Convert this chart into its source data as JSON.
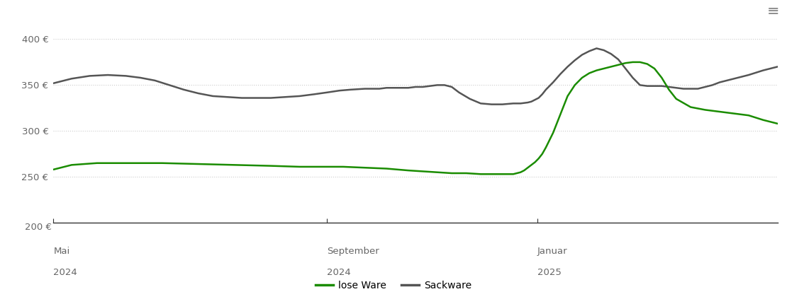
{
  "background_color": "#ffffff",
  "grid_color": "#cccccc",
  "lose_ware_color": "#1a8c00",
  "sackware_color": "#555555",
  "ylim": [
    200,
    415
  ],
  "yticks": [
    250,
    300,
    350,
    400
  ],
  "ytick_labels": [
    "250 €",
    "300 €",
    "350 €",
    "400 €"
  ],
  "y200_label": "200 €",
  "xtick_positions": [
    0.0,
    0.378,
    0.668
  ],
  "xtick_labels": [
    "Mai\n2024",
    "September\n2024",
    "Januar\n2025"
  ],
  "legend_labels": [
    "lose Ware",
    "Sackware"
  ],
  "lose_ware_x": [
    0.0,
    0.01,
    0.025,
    0.06,
    0.1,
    0.15,
    0.2,
    0.25,
    0.3,
    0.34,
    0.37,
    0.4,
    0.43,
    0.46,
    0.49,
    0.51,
    0.53,
    0.55,
    0.57,
    0.59,
    0.61,
    0.625,
    0.635,
    0.64,
    0.645,
    0.65,
    0.655,
    0.66,
    0.665,
    0.67,
    0.675,
    0.68,
    0.685,
    0.69,
    0.695,
    0.7,
    0.705,
    0.71,
    0.72,
    0.73,
    0.74,
    0.75,
    0.76,
    0.77,
    0.78,
    0.79,
    0.8,
    0.81,
    0.82,
    0.83,
    0.84,
    0.85,
    0.86,
    0.88,
    0.9,
    0.92,
    0.94,
    0.96,
    0.98,
    1.0
  ],
  "lose_ware_y": [
    258,
    260,
    263,
    265,
    265,
    265,
    264,
    263,
    262,
    261,
    261,
    261,
    260,
    259,
    257,
    256,
    255,
    254,
    254,
    253,
    253,
    253,
    253,
    254,
    255,
    257,
    260,
    263,
    266,
    270,
    275,
    282,
    290,
    298,
    308,
    318,
    328,
    338,
    350,
    358,
    363,
    366,
    368,
    370,
    372,
    374,
    375,
    375,
    373,
    368,
    358,
    345,
    335,
    326,
    323,
    321,
    319,
    317,
    312,
    308
  ],
  "sackware_x": [
    0.0,
    0.01,
    0.025,
    0.05,
    0.075,
    0.1,
    0.12,
    0.14,
    0.16,
    0.18,
    0.2,
    0.22,
    0.24,
    0.26,
    0.28,
    0.3,
    0.32,
    0.34,
    0.36,
    0.378,
    0.395,
    0.41,
    0.43,
    0.44,
    0.45,
    0.46,
    0.47,
    0.48,
    0.49,
    0.5,
    0.51,
    0.52,
    0.53,
    0.54,
    0.55,
    0.56,
    0.575,
    0.59,
    0.605,
    0.62,
    0.635,
    0.645,
    0.655,
    0.66,
    0.665,
    0.67,
    0.675,
    0.68,
    0.69,
    0.7,
    0.71,
    0.72,
    0.73,
    0.74,
    0.75,
    0.76,
    0.77,
    0.78,
    0.79,
    0.8,
    0.81,
    0.82,
    0.83,
    0.84,
    0.85,
    0.86,
    0.87,
    0.88,
    0.89,
    0.9,
    0.91,
    0.92,
    0.94,
    0.96,
    0.98,
    1.0
  ],
  "sackware_y": [
    352,
    354,
    357,
    360,
    361,
    360,
    358,
    355,
    350,
    345,
    341,
    338,
    337,
    336,
    336,
    336,
    337,
    338,
    340,
    342,
    344,
    345,
    346,
    346,
    346,
    347,
    347,
    347,
    347,
    348,
    348,
    349,
    350,
    350,
    348,
    342,
    335,
    330,
    329,
    329,
    330,
    330,
    331,
    332,
    334,
    336,
    340,
    345,
    353,
    362,
    370,
    377,
    383,
    387,
    390,
    388,
    384,
    378,
    368,
    358,
    350,
    349,
    349,
    349,
    348,
    347,
    346,
    346,
    346,
    348,
    350,
    353,
    357,
    361,
    366,
    370
  ]
}
